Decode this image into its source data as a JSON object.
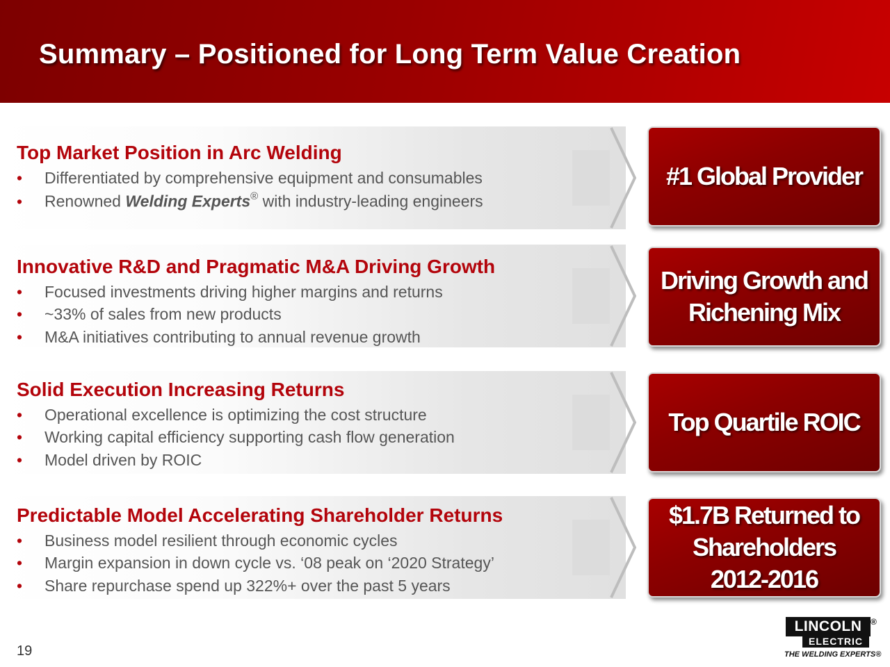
{
  "header": {
    "title": "Summary – Positioned for Long Term Value Creation"
  },
  "sections": [
    {
      "title": "Top Market Position in Arc Welding",
      "bullets": [
        "Differentiated by comprehensive equipment and consumables",
        {
          "pre": "Renowned ",
          "em": "Welding Experts",
          "sup": "®",
          "post": " with industry-leading engineers"
        }
      ],
      "callout": "#1 Global Provider"
    },
    {
      "title": "Innovative R&D and Pragmatic M&A Driving Growth",
      "bullets": [
        "Focused investments driving higher margins and returns",
        "~33% of sales from new products",
        "M&A  initiatives contributing to annual revenue growth"
      ],
      "callout": "Driving  Growth and\nRichening Mix"
    },
    {
      "title": "Solid Execution Increasing Returns",
      "bullets": [
        "Operational excellence is optimizing the cost structure",
        "Working capital efficiency supporting cash flow generation",
        "Model driven by ROIC"
      ],
      "callout": "Top Quartile ROIC"
    },
    {
      "title": "Predictable Model Accelerating Shareholder Returns",
      "bullets": [
        "Business model resilient through economic cycles",
        "Margin expansion in down cycle vs. ‘08 peak on ‘2020 Strategy’",
        "Share repurchase spend up 322%+ over the past 5 years"
      ],
      "callout": "$1.7B Returned to\nShareholders\n2012-2016"
    }
  ],
  "bullet_symbol": "•",
  "footer": {
    "page_number": "19",
    "logo": {
      "top": "LINCOLN",
      "reg": "®",
      "bottom": "ELECTRIC",
      "tagline": "THE WELDING EXPERTS®"
    }
  },
  "colors": {
    "brand_red": "#b3040b",
    "header_dark": "#7d0000",
    "header_light": "#c70000"
  }
}
